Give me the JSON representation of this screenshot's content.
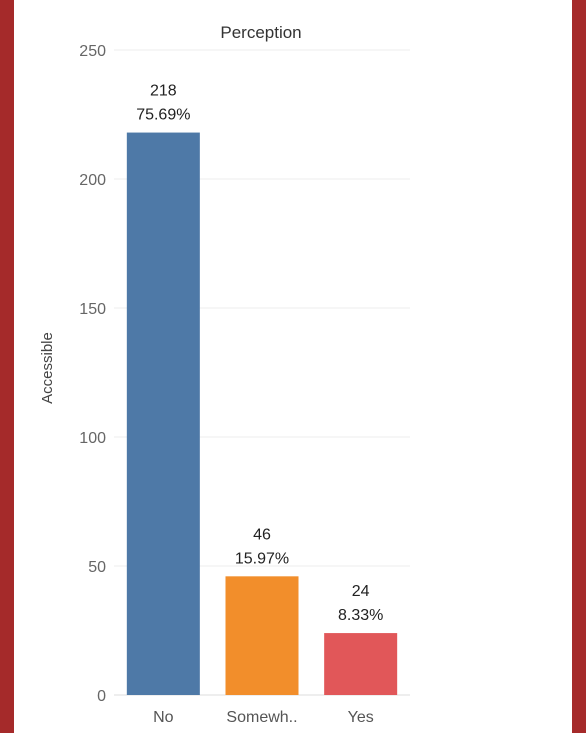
{
  "chart_data": {
    "type": "bar",
    "title": "Perception",
    "xlabel": "",
    "ylabel": "Accessible",
    "ylim": [
      0,
      250
    ],
    "yticks": [
      0,
      50,
      100,
      150,
      200,
      250
    ],
    "grid": true,
    "categories": [
      "No",
      "Somewh..",
      "Yes"
    ],
    "values": [
      218,
      46,
      24
    ],
    "value_labels": [
      "218",
      "46",
      "24"
    ],
    "percent_labels": [
      "75.69%",
      "15.97%",
      "8.33%"
    ],
    "colors": [
      "#4e79a7",
      "#f28e2b",
      "#e15759"
    ]
  }
}
